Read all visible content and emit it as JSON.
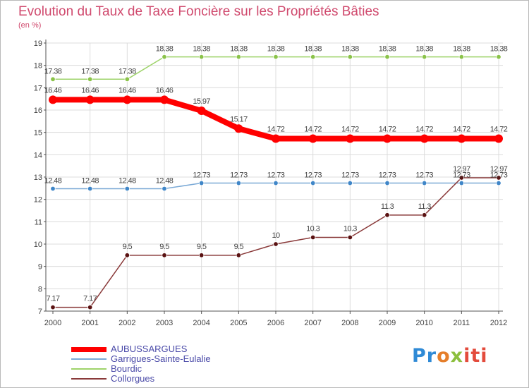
{
  "chart_data": {
    "type": "line",
    "title": "Evolution du Taux de Taxe Foncière sur les Propriétés Bâties",
    "subtitle": "(en %)",
    "xlabel": "",
    "ylabel": "",
    "ylim": [
      7,
      19
    ],
    "grid": true,
    "x": [
      "2000",
      "2001",
      "2002",
      "2003",
      "2004",
      "2005",
      "2006",
      "2007",
      "2008",
      "2009",
      "2010",
      "2011",
      "2012"
    ],
    "yticks": [
      "7",
      "8",
      "9",
      "10",
      "11",
      "12",
      "13",
      "14",
      "15",
      "16",
      "17",
      "18",
      "19"
    ],
    "series": [
      {
        "name": "Bourdic",
        "color": "#9ed36a",
        "marker": "#8bc34a",
        "values": [
          17.38,
          17.38,
          17.38,
          18.38,
          18.38,
          18.38,
          18.38,
          18.38,
          18.38,
          18.38,
          18.38,
          18.38,
          18.38
        ],
        "labels": [
          "17.38",
          "17.38",
          "17.38",
          "18.38",
          "18.38",
          "18.38",
          "18.38",
          "18.38",
          "18.38",
          "18.38",
          "18.38",
          "18.38",
          "18.38"
        ]
      },
      {
        "name": "Garrigues-Sainte-Eulalie",
        "color": "#7aa9d6",
        "marker": "#3f86c8",
        "values": [
          12.48,
          12.48,
          12.48,
          12.48,
          12.73,
          12.73,
          12.73,
          12.73,
          12.73,
          12.73,
          12.73,
          12.73,
          12.73
        ],
        "labels": [
          "12.48",
          "12.48",
          "12.48",
          "12.48",
          "12.73",
          "12.73",
          "12.73",
          "12.73",
          "12.73",
          "12.73",
          "12.73",
          "12.73",
          "12.73"
        ]
      },
      {
        "name": "Collorgues",
        "color": "#8a3a3a",
        "marker": "#5a1212",
        "values": [
          7.17,
          7.17,
          9.5,
          9.5,
          9.5,
          9.5,
          10,
          10.3,
          10.3,
          11.3,
          11.3,
          12.97,
          12.97
        ],
        "labels": [
          "7.17",
          "7.17",
          "9.5",
          "9.5",
          "9.5",
          "9.5",
          "10",
          "10.3",
          "10.3",
          "11.3",
          "11.3",
          "12.97",
          "12.97"
        ]
      },
      {
        "name": "AUBUSSARGUES",
        "color": "#ff0000",
        "marker": "#ff0000",
        "values": [
          16.46,
          16.46,
          16.46,
          16.46,
          15.97,
          15.17,
          14.72,
          14.72,
          14.72,
          14.72,
          14.72,
          14.72,
          14.72
        ],
        "labels": [
          "16.46",
          "16.46",
          "16.46",
          "16.46",
          "15.97",
          "15.17",
          "14.72",
          "14.72",
          "14.72",
          "14.72",
          "14.72",
          "14.72",
          "14.72"
        ]
      }
    ],
    "legend": [
      {
        "name": "AUBUSSARGUES",
        "color": "#ff0000"
      },
      {
        "name": "Garrigues-Sainte-Eulalie",
        "color": "#7aa9d6"
      },
      {
        "name": "Bourdic",
        "color": "#9ed36a"
      },
      {
        "name": "Collorgues",
        "color": "#8a3a3a"
      }
    ],
    "legend_position": "bottom-left"
  },
  "logo": {
    "p1": "Pr",
    "p2": "o",
    "p3": "x",
    "p4": "iti"
  }
}
